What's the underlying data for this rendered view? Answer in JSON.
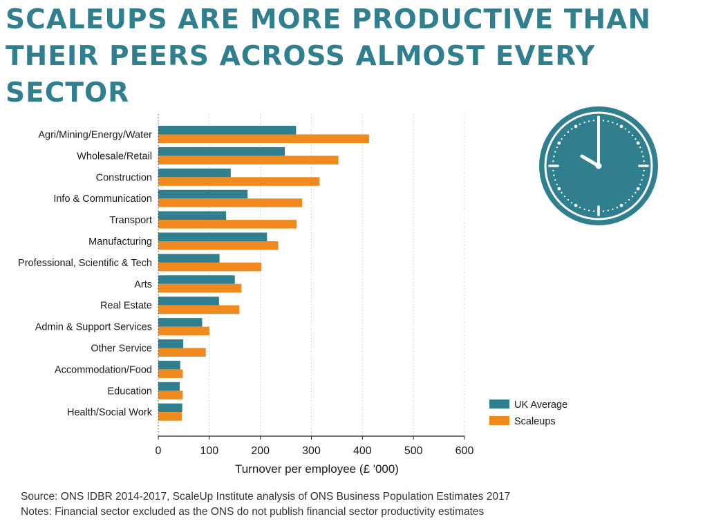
{
  "title_lines": [
    "SCALEUPS ARE MORE PRODUCTIVE THAN",
    "THEIR PEERS ACROSS ALMOST EVERY SECTOR"
  ],
  "colors": {
    "title": "#2f7f8e",
    "uk_average": "#2f7f8e",
    "scaleups": "#f0891e",
    "clock": "#2f7f8e"
  },
  "icon": "clock-icon",
  "chart_data": {
    "type": "bar",
    "orientation": "horizontal",
    "categories": [
      "Agri/Mining/Energy/Water",
      "Wholesale/Retail",
      "Construction",
      "Info & Communication",
      "Transport",
      "Manufacturing",
      "Professional, Scientific & Tech",
      "Arts",
      "Real Estate",
      "Admin & Support Services",
      "Other Service",
      "Accommodation/Food",
      "Education",
      "Health/Social Work"
    ],
    "series": [
      {
        "name": "UK Average",
        "color": "#2f7f8e",
        "values": [
          270,
          248,
          142,
          175,
          133,
          213,
          120,
          150,
          119,
          86,
          49,
          43,
          42,
          47
        ]
      },
      {
        "name": "Scaleups",
        "color": "#f0891e",
        "values": [
          413,
          353,
          316,
          282,
          271,
          235,
          202,
          163,
          159,
          100,
          93,
          48,
          48,
          46
        ]
      }
    ],
    "xlabel": "Turnover per employee (£ '000)",
    "xlim": [
      0,
      600
    ],
    "xticks": [
      0,
      100,
      200,
      300,
      400,
      500,
      600
    ],
    "grid": "vertical-dotted",
    "legend_position": "bottom-right"
  },
  "footer": {
    "source": "Source: ONS IDBR 2014-2017, ScaleUp Institute analysis of ONS Business Population Estimates 2017",
    "notes": "Notes: Financial sector excluded as the ONS do not publish financial sector productivity estimates"
  }
}
